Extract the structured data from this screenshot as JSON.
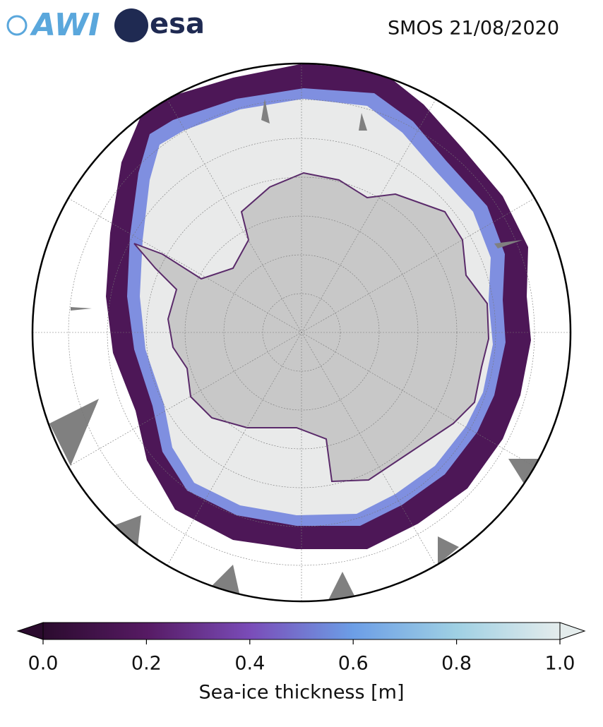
{
  "header": {
    "logos": [
      "AWI",
      "esa"
    ],
    "title": "SMOS 21/08/2020"
  },
  "colorbar": {
    "label": "Sea-ice thickness [m]",
    "lim": [
      0,
      1
    ],
    "ticks": [
      {
        "value": 0,
        "label": "0.0"
      },
      0.2,
      0.4,
      0.6,
      0.8,
      {
        "value": 1,
        "label": "1.0"
      }
    ],
    "colormap": [
      "#2b0b2e",
      "#561a63",
      "#7a4cb8",
      "#6c9ee6",
      "#9fd0e3",
      "#e4ecec"
    ]
  }
}
